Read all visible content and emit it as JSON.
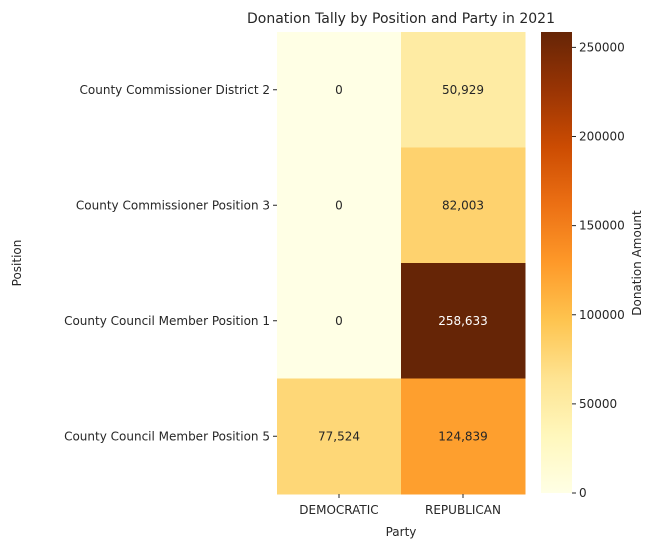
{
  "chart_data": {
    "type": "heatmap",
    "title": "Donation Tally by Position and Party in 2021",
    "xlabel": "Party",
    "ylabel": "Position",
    "x_categories": [
      "DEMOCRATIC",
      "REPUBLICAN"
    ],
    "y_categories": [
      "County Commissioner District 2",
      "County Commissioner Position 3",
      "County Council Member Position 1",
      "County Council Member Position 5"
    ],
    "values": [
      [
        0,
        50929
      ],
      [
        0,
        82003
      ],
      [
        0,
        258633
      ],
      [
        77524,
        124839
      ]
    ],
    "cell_labels": [
      [
        "0",
        "50,929"
      ],
      [
        "0",
        "82,003"
      ],
      [
        "0",
        "258,633"
      ],
      [
        "77,524",
        "124,839"
      ]
    ],
    "colorbar": {
      "label": "Donation Amount",
      "range": [
        0,
        258633
      ],
      "ticks": [
        0,
        50000,
        100000,
        150000,
        200000,
        250000
      ],
      "tick_labels": [
        "0",
        "50000",
        "100000",
        "150000",
        "200000",
        "250000"
      ],
      "colormap": "YlOrBr",
      "colors": [
        "#ffffe5",
        "#fff7bc",
        "#fee391",
        "#fec44f",
        "#fe9929",
        "#ec7014",
        "#cc4c02",
        "#993404",
        "#662506"
      ]
    }
  }
}
